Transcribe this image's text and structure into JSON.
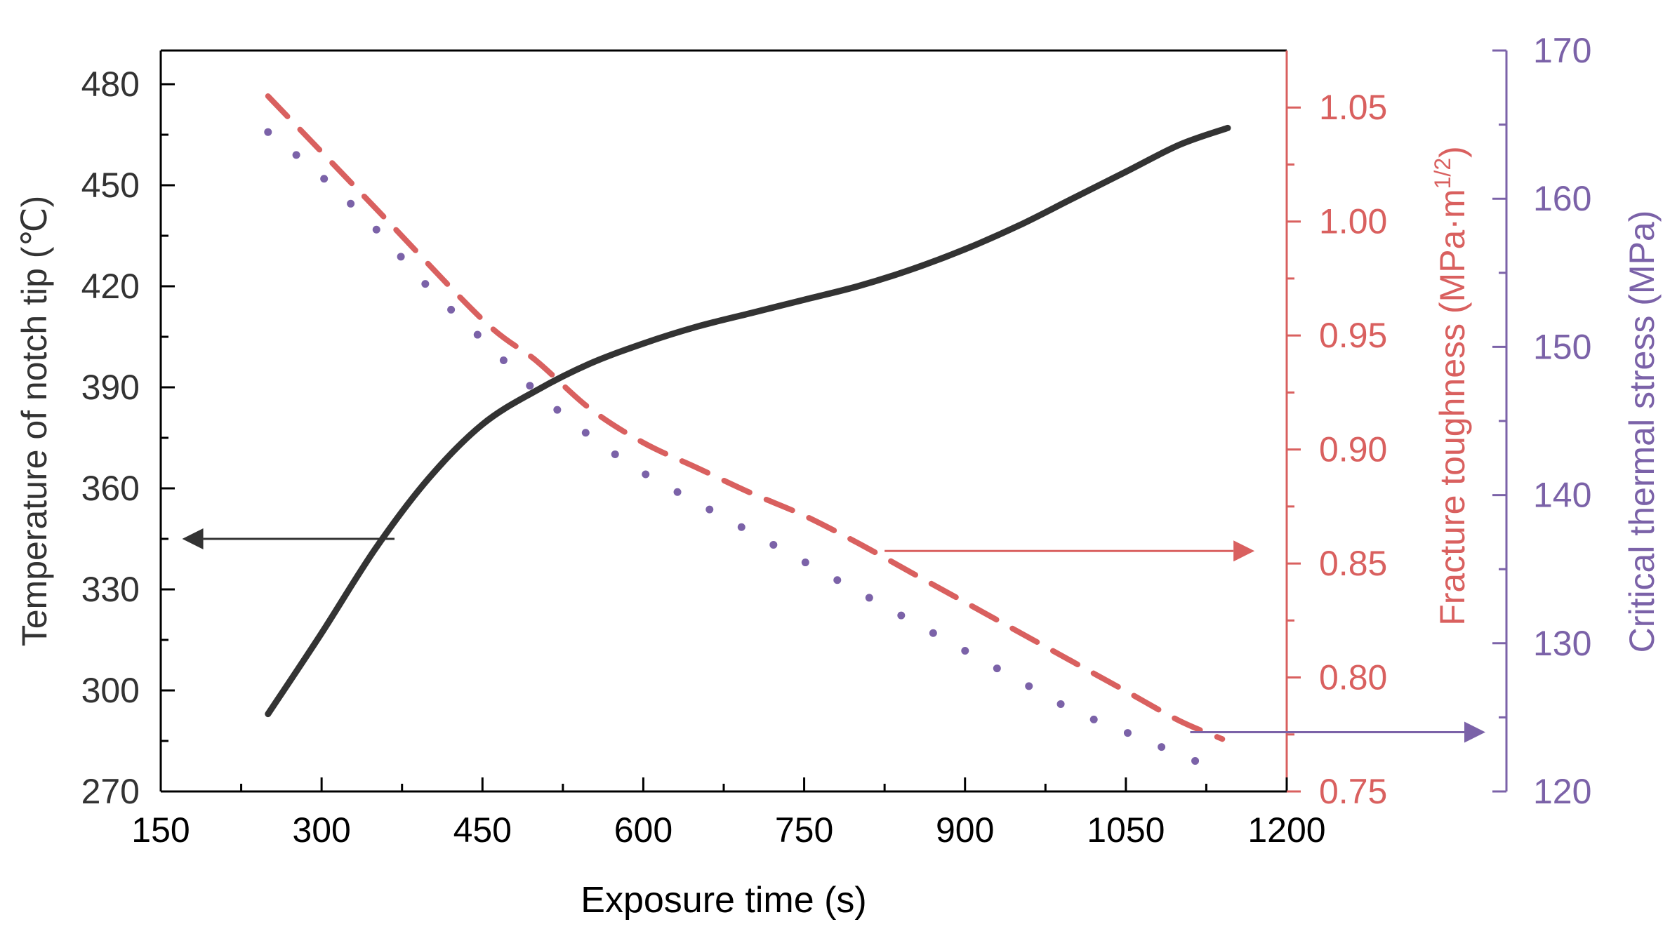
{
  "chart_data": {
    "type": "line",
    "xlabel": "Exposure time (s)",
    "xlim": [
      150,
      1200
    ],
    "xticks": [
      150,
      300,
      450,
      600,
      750,
      900,
      1050,
      1200
    ],
    "axes": {
      "temperature": {
        "label": "Temperature of notch tip (℃)",
        "lim": [
          270,
          490
        ],
        "ticks": [
          270,
          300,
          330,
          360,
          390,
          420,
          450,
          480
        ],
        "color": "#333333"
      },
      "toughness": {
        "label_main": "Fracture toughness (MPa·m",
        "label_sup": "1/2",
        "label_end": ")",
        "lim": [
          0.75,
          1.075
        ],
        "ticks": [
          "0.75",
          "0.80",
          "0.85",
          "0.90",
          "0.95",
          "1.00",
          "1.05"
        ],
        "color": "#d9605f"
      },
      "stress": {
        "label": "Critical thermal stress (MPa)",
        "lim": [
          120,
          170
        ],
        "ticks": [
          120,
          130,
          140,
          150,
          160,
          170
        ],
        "color": "#7b62a8"
      }
    },
    "series": [
      {
        "name": "Temperature of notch tip",
        "axis": "temperature",
        "style": "solid",
        "color": "#333333",
        "x": [
          250,
          300,
          350,
          400,
          450,
          500,
          550,
          600,
          650,
          700,
          750,
          800,
          850,
          900,
          950,
          1000,
          1050,
          1100,
          1145
        ],
        "y": [
          293,
          317,
          342,
          363,
          379,
          389,
          397,
          403,
          408,
          412,
          416,
          420,
          425,
          431,
          438,
          446,
          454,
          462,
          467
        ]
      },
      {
        "name": "Fracture toughness",
        "axis": "toughness",
        "style": "dashed",
        "color": "#d9605f",
        "x": [
          250,
          350,
          450,
          500,
          550,
          600,
          650,
          700,
          750,
          800,
          850,
          900,
          950,
          1000,
          1050,
          1100,
          1140
        ],
        "y": [
          1.055,
          1.006,
          0.957,
          0.939,
          0.918,
          0.903,
          0.892,
          0.881,
          0.871,
          0.859,
          0.846,
          0.833,
          0.82,
          0.807,
          0.794,
          0.781,
          0.773
        ]
      },
      {
        "name": "Critical thermal stress",
        "axis": "stress",
        "style": "dotted",
        "color": "#7b62a8",
        "x": [
          250,
          300,
          350,
          400,
          450,
          500,
          550,
          600,
          650,
          700,
          750,
          800,
          850,
          900,
          950,
          1000,
          1050,
          1100,
          1140
        ],
        "y": [
          164.5,
          161.5,
          158.0,
          154.0,
          150.5,
          147.0,
          144.0,
          141.5,
          139.5,
          137.5,
          135.5,
          133.5,
          131.5,
          129.5,
          127.5,
          125.5,
          124.0,
          122.5,
          121.3
        ]
      }
    ],
    "annotations": [
      {
        "type": "arrow",
        "direction": "left",
        "color": "#333333",
        "x_from": 368,
        "x_to": 170,
        "axis": "temperature",
        "y": 345
      },
      {
        "type": "arrow",
        "direction": "right",
        "color": "#d9605f",
        "x_from": 825,
        "x_to": 1170,
        "axis": "toughness",
        "y": 0.8555
      },
      {
        "type": "arrow",
        "direction": "right",
        "color": "#7b62a8",
        "x_from": 1110,
        "x_to": "stress axis",
        "axis": "stress",
        "y": 124.0
      }
    ]
  }
}
